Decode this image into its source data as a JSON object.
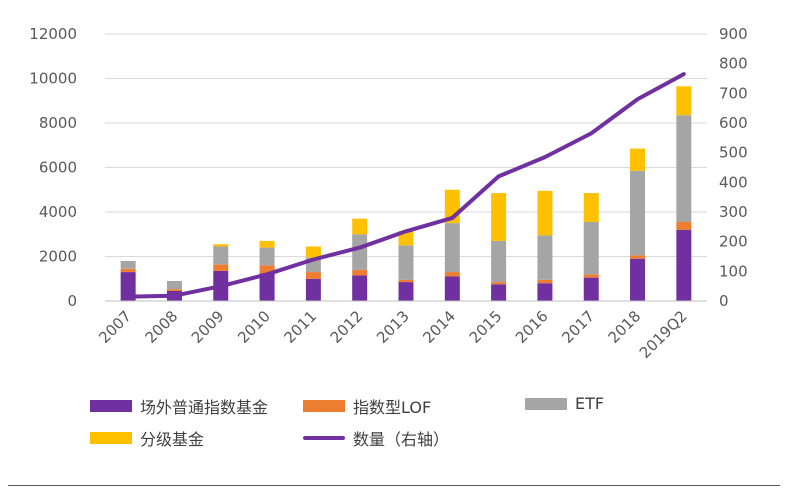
{
  "chart_data": {
    "type": "bar",
    "categories": [
      "2007",
      "2008",
      "2009",
      "2010",
      "2011",
      "2012",
      "2013",
      "2014",
      "2015",
      "2016",
      "2017",
      "2018",
      "2019Q2"
    ],
    "series": [
      {
        "name": "场外普通指数基金",
        "type": "stacked-bar",
        "axis": "left",
        "color": "#7030A0",
        "values": [
          1300,
          450,
          1350,
          1250,
          1000,
          1150,
          850,
          1100,
          750,
          800,
          1050,
          1900,
          3200
        ]
      },
      {
        "name": "指数型LOF",
        "type": "stacked-bar",
        "axis": "left",
        "color": "#ED7D31",
        "values": [
          150,
          80,
          300,
          350,
          300,
          250,
          100,
          200,
          100,
          150,
          150,
          150,
          350
        ]
      },
      {
        "name": "ETF",
        "type": "stacked-bar",
        "axis": "left",
        "color": "#A5A5A5",
        "values": [
          350,
          370,
          800,
          800,
          650,
          1600,
          1550,
          2200,
          1850,
          2000,
          2350,
          3800,
          4800
        ]
      },
      {
        "name": "分级基金",
        "type": "stacked-bar",
        "axis": "left",
        "color": "#FFC000",
        "values": [
          0,
          0,
          100,
          300,
          500,
          700,
          650,
          1500,
          2150,
          2000,
          1300,
          1000,
          1300
        ]
      },
      {
        "name": "数量（右轴）",
        "type": "line",
        "axis": "right",
        "color": "#7030A0",
        "values": [
          15,
          18,
          50,
          90,
          140,
          180,
          235,
          280,
          420,
          485,
          565,
          680,
          765
        ]
      }
    ],
    "y_left": {
      "min": 0,
      "max": 12000,
      "ticks": [
        0,
        2000,
        4000,
        6000,
        8000,
        10000,
        12000
      ]
    },
    "y_right": {
      "min": 0,
      "max": 900,
      "ticks": [
        0,
        100,
        200,
        300,
        400,
        500,
        600,
        700,
        800,
        900
      ]
    },
    "grid": true,
    "legend_position": "bottom"
  },
  "legend": [
    {
      "label": "场外普通指数基金",
      "color": "#7030A0",
      "kind": "bar"
    },
    {
      "label": "指数型LOF",
      "color": "#ED7D31",
      "kind": "bar"
    },
    {
      "label": "ETF",
      "color": "#A5A5A5",
      "kind": "bar"
    },
    {
      "label": "分级基金",
      "color": "#FFC000",
      "kind": "bar"
    },
    {
      "label": "数量（右轴）",
      "color": "#7030A0",
      "kind": "line"
    }
  ]
}
